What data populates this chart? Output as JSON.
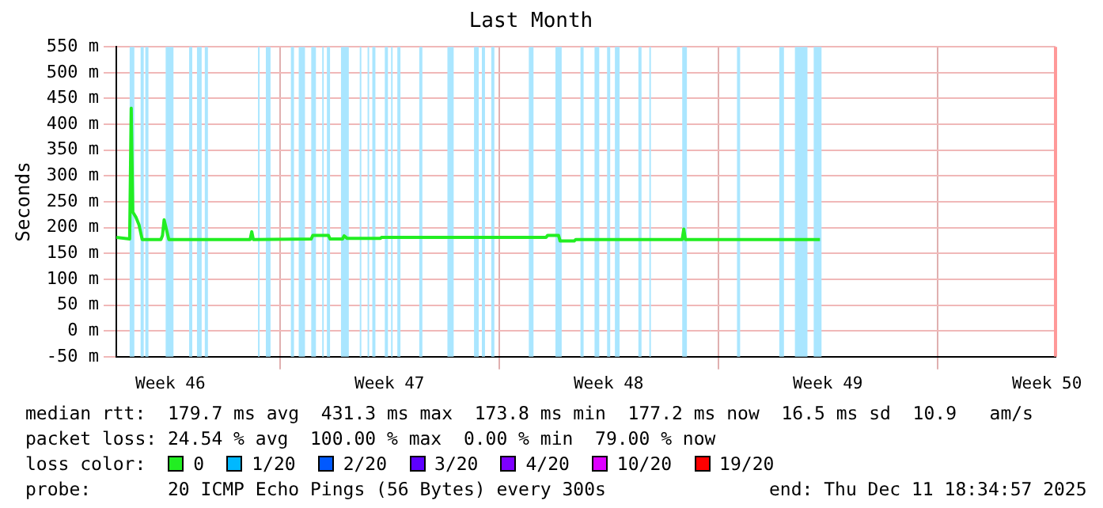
{
  "chart_data": {
    "type": "line",
    "title": "Last Month",
    "ylabel": "Seconds",
    "legend_title": "loss color:",
    "legend": "bottom",
    "grid": true,
    "marker": "none",
    "line_style": "solid",
    "xlim": [
      "2025-11-11T18:35",
      "2025-12-11T18:35"
    ],
    "xticks": [
      {
        "value": "2025-11-13T12:00",
        "label": "Week 46"
      },
      {
        "value": "2025-11-17",
        "label": null
      },
      {
        "value": "2025-11-20T12:00",
        "label": "Week 47"
      },
      {
        "value": "2025-11-24",
        "label": null
      },
      {
        "value": "2025-11-27T12:00",
        "label": "Week 48"
      },
      {
        "value": "2025-12-01",
        "label": null
      },
      {
        "value": "2025-12-04T12:00",
        "label": "Week 49"
      },
      {
        "value": "2025-12-08",
        "label": null
      },
      {
        "value": "2025-12-11T12:00",
        "label": "Week 50"
      }
    ],
    "ylim": [
      -50,
      550
    ],
    "yticks": [
      {
        "value": -50,
        "label": "-50 m"
      },
      {
        "value": 0,
        "label": "0 m"
      },
      {
        "value": 50,
        "label": "50 m"
      },
      {
        "value": 100,
        "label": "100 m"
      },
      {
        "value": 150,
        "label": "150 m"
      },
      {
        "value": 200,
        "label": "200 m"
      },
      {
        "value": 250,
        "label": "250 m"
      },
      {
        "value": 300,
        "label": "300 m"
      },
      {
        "value": 350,
        "label": "350 m"
      },
      {
        "value": 400,
        "label": "400 m"
      },
      {
        "value": 450,
        "label": "450 m"
      },
      {
        "value": 500,
        "label": "500 m"
      },
      {
        "value": 550,
        "label": "550 m"
      }
    ],
    "x": [
      "2025-11-11T18:35",
      "2025-11-12T04:48",
      "2025-11-12T06:00",
      "2025-11-12T07:12",
      "2025-11-12T09:36",
      "2025-11-12T12:00",
      "2025-11-12T14:24",
      "2025-11-13T04:48",
      "2025-11-13T06:00",
      "2025-11-13T07:12",
      "2025-11-13T09:36",
      "2025-11-13T10:48",
      "2025-11-16T01:12",
      "2025-11-16T02:24",
      "2025-11-16T03:36",
      "2025-11-18T00:00",
      "2025-11-18T01:12",
      "2025-11-18T13:12",
      "2025-11-18T14:24",
      "2025-11-19T00:00",
      "2025-11-19T01:12",
      "2025-11-19T03:36",
      "2025-11-20T04:48",
      "2025-11-20T06:00",
      "2025-11-25T12:00",
      "2025-11-25T13:12",
      "2025-11-25T21:36",
      "2025-11-25T22:48",
      "2025-11-26T09:36",
      "2025-11-26T10:48",
      "2025-11-29T20:24",
      "2025-11-29T21:36",
      "2025-11-29T22:48",
      "2025-12-04T06:00"
    ],
    "series": [
      {
        "name": "0",
        "color": "#22ee22",
        "values": [
          181,
          178,
          431,
          230,
          220,
          205,
          177,
          177,
          185,
          215,
          190,
          177,
          177,
          192,
          177,
          178,
          185,
          185,
          178,
          178,
          184,
          179,
          179,
          181,
          181,
          185,
          185,
          174,
          174,
          177,
          177,
          197,
          177,
          177
        ]
      },
      {
        "name": "1/20",
        "color": "#00b8ff",
        "values": [
          null,
          null,
          null,
          null,
          null,
          null,
          null,
          null,
          null,
          null,
          null,
          null,
          null,
          null,
          null,
          null,
          null,
          null,
          null,
          null,
          null,
          null,
          null,
          null,
          null,
          null,
          null,
          null,
          null,
          null,
          null,
          null,
          null,
          null
        ]
      },
      {
        "name": "2/20",
        "color": "#0059ff",
        "values": [
          null,
          null,
          null,
          null,
          null,
          null,
          null,
          null,
          null,
          null,
          null,
          null,
          null,
          null,
          null,
          null,
          null,
          null,
          null,
          null,
          null,
          null,
          null,
          null,
          null,
          null,
          null,
          null,
          null,
          null,
          null,
          null,
          null,
          null
        ]
      },
      {
        "name": "3/20",
        "color": "#5e00ff",
        "values": [
          null,
          null,
          null,
          null,
          null,
          null,
          null,
          null,
          null,
          null,
          null,
          null,
          null,
          null,
          null,
          null,
          null,
          null,
          null,
          null,
          null,
          null,
          null,
          null,
          null,
          null,
          null,
          null,
          null,
          null,
          null,
          null,
          null,
          null
        ]
      },
      {
        "name": "4/20",
        "color": "#7e00ff",
        "values": [
          null,
          null,
          null,
          null,
          null,
          null,
          null,
          null,
          null,
          null,
          null,
          null,
          null,
          null,
          null,
          null,
          null,
          null,
          null,
          null,
          null,
          null,
          null,
          null,
          null,
          null,
          null,
          null,
          null,
          null,
          null,
          null,
          null,
          null
        ]
      },
      {
        "name": "10/20",
        "color": "#dd00ff",
        "values": [
          null,
          null,
          null,
          null,
          null,
          null,
          null,
          null,
          null,
          null,
          null,
          null,
          null,
          null,
          null,
          null,
          null,
          null,
          null,
          null,
          null,
          null,
          null,
          null,
          null,
          null,
          null,
          null,
          null,
          null,
          null,
          null,
          null,
          null
        ]
      },
      {
        "name": "19/20",
        "color": "#ff0000",
        "values": [
          null,
          null,
          null,
          null,
          null,
          null,
          null,
          null,
          null,
          null,
          null,
          null,
          null,
          null,
          null,
          null,
          null,
          null,
          null,
          null,
          null,
          null,
          null,
          null,
          null,
          null,
          null,
          null,
          null,
          null,
          null,
          null,
          null,
          null
        ]
      }
    ],
    "bands": [
      {
        "axis": "x",
        "from": "2025-11-12T04:48",
        "to": "2025-11-12T08:24",
        "color": "#aae6ff"
      },
      {
        "axis": "x",
        "from": "2025-11-12T13:12",
        "to": "2025-11-12T15:36",
        "color": "#aae6ff"
      },
      {
        "axis": "x",
        "from": "2025-11-12T16:48",
        "to": "2025-11-12T19:12",
        "color": "#aae6ff"
      },
      {
        "axis": "x",
        "from": "2025-11-13T08:24",
        "to": "2025-11-13T14:24",
        "color": "#aae6ff"
      },
      {
        "axis": "x",
        "from": "2025-11-14T02:24",
        "to": "2025-11-14T04:48",
        "color": "#aae6ff"
      },
      {
        "axis": "x",
        "from": "2025-11-14T08:24",
        "to": "2025-11-14T12:00",
        "color": "#aae6ff"
      },
      {
        "axis": "x",
        "from": "2025-11-14T14:24",
        "to": "2025-11-14T16:48",
        "color": "#aae6ff"
      },
      {
        "axis": "x",
        "from": "2025-11-16T07:12",
        "to": "2025-11-16T08:24",
        "color": "#aae6ff"
      },
      {
        "axis": "x",
        "from": "2025-11-16T13:12",
        "to": "2025-11-16T16:48",
        "color": "#aae6ff"
      },
      {
        "axis": "x",
        "from": "2025-11-17T08:24",
        "to": "2025-11-17T10:48",
        "color": "#aae6ff"
      },
      {
        "axis": "x",
        "from": "2025-11-17T14:24",
        "to": "2025-11-17T19:12",
        "color": "#aae6ff"
      },
      {
        "axis": "x",
        "from": "2025-11-18T00:00",
        "to": "2025-11-18T03:36",
        "color": "#aae6ff"
      },
      {
        "axis": "x",
        "from": "2025-11-18T08:24",
        "to": "2025-11-18T09:36",
        "color": "#aae6ff"
      },
      {
        "axis": "x",
        "from": "2025-11-18T12:00",
        "to": "2025-11-18T14:24",
        "color": "#aae6ff"
      },
      {
        "axis": "x",
        "from": "2025-11-18T22:48",
        "to": "2025-11-19T04:48",
        "color": "#aae6ff"
      },
      {
        "axis": "x",
        "from": "2025-11-19T13:12",
        "to": "2025-11-19T14:24",
        "color": "#aae6ff"
      },
      {
        "axis": "x",
        "from": "2025-11-19T19:12",
        "to": "2025-11-19T20:24",
        "color": "#aae6ff"
      },
      {
        "axis": "x",
        "from": "2025-11-19T22:48",
        "to": "2025-11-20T01:12",
        "color": "#aae6ff"
      },
      {
        "axis": "x",
        "from": "2025-11-20T08:24",
        "to": "2025-11-20T10:48",
        "color": "#aae6ff"
      },
      {
        "axis": "x",
        "from": "2025-11-20T13:12",
        "to": "2025-11-20T14:24",
        "color": "#aae6ff"
      },
      {
        "axis": "x",
        "from": "2025-11-20T18:00",
        "to": "2025-11-20T20:24",
        "color": "#aae6ff"
      },
      {
        "axis": "x",
        "from": "2025-11-21T10:48",
        "to": "2025-11-21T13:12",
        "color": "#aae6ff"
      },
      {
        "axis": "x",
        "from": "2025-11-22T08:24",
        "to": "2025-11-22T13:12",
        "color": "#aae6ff"
      },
      {
        "axis": "x",
        "from": "2025-11-23T04:48",
        "to": "2025-11-23T08:24",
        "color": "#aae6ff"
      },
      {
        "axis": "x",
        "from": "2025-11-23T10:48",
        "to": "2025-11-23T13:12",
        "color": "#aae6ff"
      },
      {
        "axis": "x",
        "from": "2025-11-23T18:00",
        "to": "2025-11-23T20:24",
        "color": "#aae6ff"
      },
      {
        "axis": "x",
        "from": "2025-11-24T22:48",
        "to": "2025-11-25T02:24",
        "color": "#aae6ff"
      },
      {
        "axis": "x",
        "from": "2025-11-25T19:12",
        "to": "2025-11-26T00:00",
        "color": "#aae6ff"
      },
      {
        "axis": "x",
        "from": "2025-11-26T14:24",
        "to": "2025-11-26T16:48",
        "color": "#aae6ff"
      },
      {
        "axis": "x",
        "from": "2025-11-27T01:12",
        "to": "2025-11-27T04:48",
        "color": "#aae6ff"
      },
      {
        "axis": "x",
        "from": "2025-11-27T10:48",
        "to": "2025-11-27T13:12",
        "color": "#aae6ff"
      },
      {
        "axis": "x",
        "from": "2025-11-27T16:48",
        "to": "2025-11-27T20:24",
        "color": "#aae6ff"
      },
      {
        "axis": "x",
        "from": "2025-11-28T10:48",
        "to": "2025-11-28T13:12",
        "color": "#aae6ff"
      },
      {
        "axis": "x",
        "from": "2025-11-28T19:12",
        "to": "2025-11-28T20:24",
        "color": "#aae6ff"
      },
      {
        "axis": "x",
        "from": "2025-11-29T20:24",
        "to": "2025-11-30T00:00",
        "color": "#aae6ff"
      },
      {
        "axis": "x",
        "from": "2025-12-01T14:24",
        "to": "2025-12-01T16:48",
        "color": "#aae6ff"
      },
      {
        "axis": "x",
        "from": "2025-12-02T22:48",
        "to": "2025-12-03T02:24",
        "color": "#aae6ff"
      },
      {
        "axis": "x",
        "from": "2025-12-03T10:48",
        "to": "2025-12-03T20:24",
        "color": "#aae6ff"
      },
      {
        "axis": "x",
        "from": "2025-12-04T01:12",
        "to": "2025-12-04T07:12",
        "color": "#aae6ff"
      }
    ],
    "ref_lines": [
      {
        "axis": "x",
        "value": "2025-12-11T18:35",
        "color": "#ff9999"
      }
    ],
    "annotations": [
      "median rtt:  179.7 ms avg  431.3 ms max  173.8 ms min  177.2 ms now  16.5 ms sd  10.9   am/s",
      "packet loss: 24.54 % avg  100.00 % max  0.00 % min  79.00 % now",
      "probe:       20 ICMP Echo Pings (56 Bytes) every 300s",
      "end: Thu Dec 11 18:34:57 2025"
    ]
  }
}
